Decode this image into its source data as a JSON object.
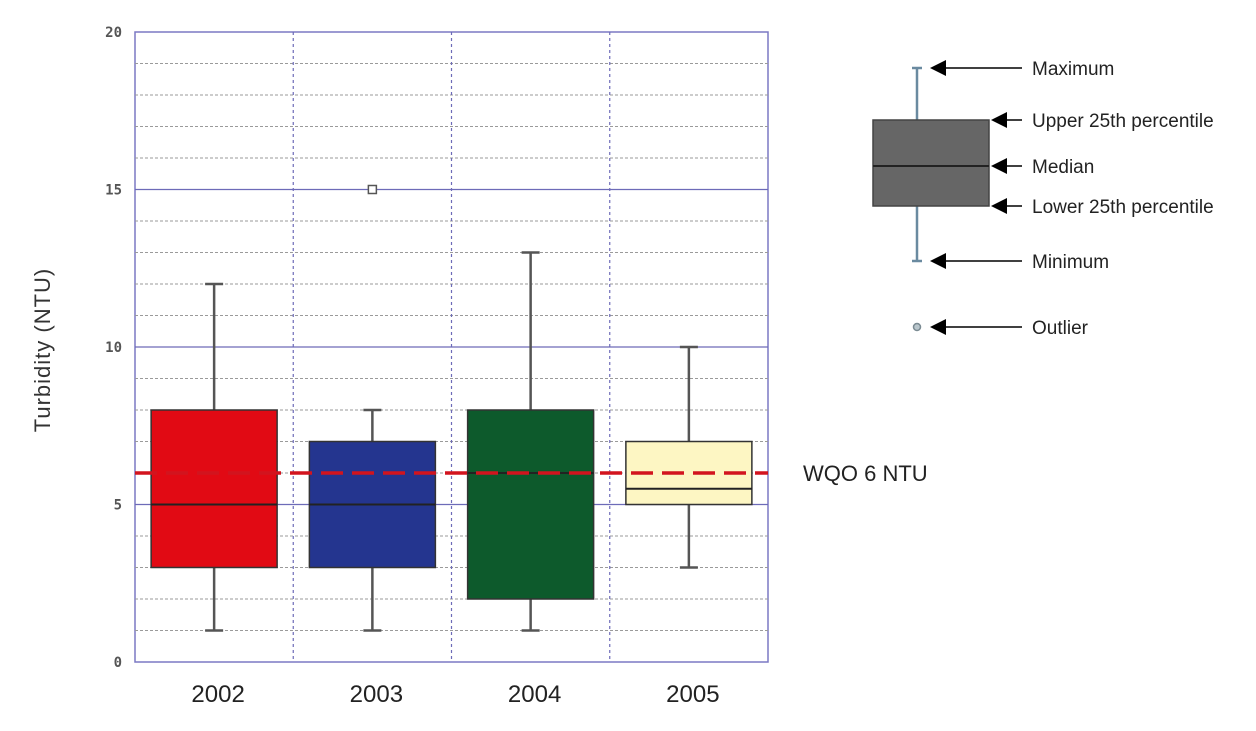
{
  "chart_data": {
    "type": "box",
    "title": "",
    "xlabel": "",
    "ylabel": "Turbidity (NTU)",
    "ylim": [
      0,
      20
    ],
    "yticks": [
      "0",
      "5",
      "10",
      "15",
      "20"
    ],
    "grid": true,
    "categories": [
      "2002",
      "2003",
      "2004",
      "2005"
    ],
    "boxes": [
      {
        "category": "2002",
        "min": 1,
        "q1": 3,
        "median": 5,
        "q3": 8,
        "max": 12,
        "outliers": [],
        "color": "#e10a14"
      },
      {
        "category": "2003",
        "min": 1,
        "q1": 3,
        "median": 5,
        "q3": 7,
        "max": 8,
        "outliers": [
          15
        ],
        "color": "#24358f"
      },
      {
        "category": "2004",
        "min": 1,
        "q1": 2,
        "median": 6,
        "q3": 8,
        "max": 13,
        "outliers": [],
        "color": "#0d5a2c"
      },
      {
        "category": "2005",
        "min": 3,
        "q1": 5,
        "median": 5.5,
        "q3": 7,
        "max": 10,
        "outliers": [],
        "color": "#fdf6c3"
      }
    ],
    "reference_line": {
      "value": 6,
      "label": "WQO 6 NTU",
      "color": "#d2141e",
      "style": "dashed"
    },
    "legend": {
      "title": "",
      "placement": "right",
      "box_color": "#666666",
      "items": [
        {
          "key": "max",
          "label": "Maximum"
        },
        {
          "key": "q3",
          "label": "Upper 25th percentile"
        },
        {
          "key": "median",
          "label": "Median"
        },
        {
          "key": "q1",
          "label": "Lower 25th percentile"
        },
        {
          "key": "min",
          "label": "Minimum"
        },
        {
          "key": "outlier",
          "label": "Outlier"
        }
      ]
    }
  }
}
